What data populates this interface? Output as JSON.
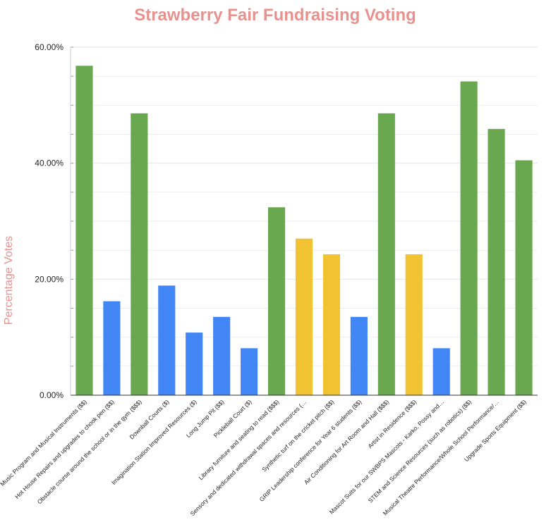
{
  "chart_data": {
    "type": "bar",
    "title": "Strawberry Fair Fundraising Voting",
    "xlabel": "",
    "ylabel": "Percentage Votes",
    "ylim": [
      0,
      60
    ],
    "yticks": [
      0,
      20,
      40,
      60
    ],
    "ytick_labels": [
      "0.00%",
      "20.00%",
      "40.00%",
      "60.00%"
    ],
    "grid": true,
    "categories": [
      "Music Program and Musical Instruments ($$)",
      "Hot House Repairs and upgrades to chook pen ($$)",
      "Obstacle course around the school or in the gym ($$$)",
      "Downball Courts ($)",
      "Imagination Station Improved Resources ($)",
      "Long Jump Pit ($$)",
      "Pickleball Court ($)",
      "Library furniture and seating to read ($$$)",
      "Sensory and dedicated withdrawal spaces and resources (…",
      "Synthetic turf on the cricket pitch ($$)",
      "GRIP Leadership conference for Year 6 students ($$)",
      "Air Conditioning for Art Room and Hall ($$$)",
      "Artist in Residence ($$$)",
      "Mascot Suits for our SWBPS Mascots - Karko, Possy and…",
      "STEM and Science Resources (such as robotics) ($$)",
      "Musical Theatre Performance/Whole School Performance/…",
      "Upgrade Sports Equipment ($$)"
    ],
    "values": [
      56.8,
      16.2,
      48.6,
      18.9,
      10.8,
      13.5,
      8.1,
      32.4,
      27.0,
      24.3,
      13.5,
      48.6,
      24.3,
      8.1,
      54.1,
      45.9,
      40.5
    ],
    "bar_colors": [
      "#6aa84f",
      "#4285f4",
      "#6aa84f",
      "#4285f4",
      "#4285f4",
      "#4285f4",
      "#4285f4",
      "#6aa84f",
      "#f1c232",
      "#f1c232",
      "#4285f4",
      "#6aa84f",
      "#f1c232",
      "#4285f4",
      "#6aa84f",
      "#6aa84f",
      "#6aa84f"
    ]
  },
  "colors": {
    "title": "#e6928f",
    "ylabel": "#e6928f",
    "grid": "#e6e6e6",
    "axis": "#333333"
  }
}
